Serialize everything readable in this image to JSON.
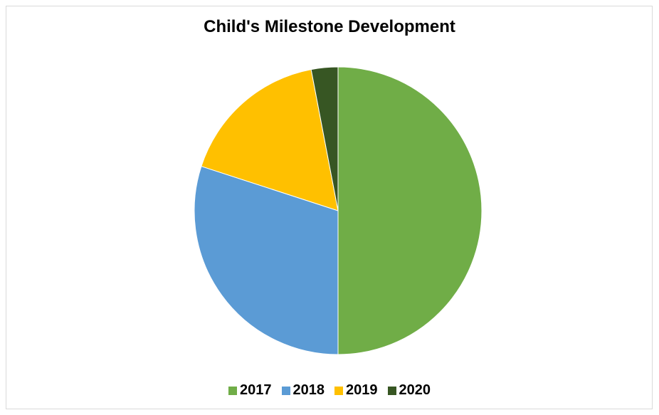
{
  "chart_data": {
    "type": "pie",
    "title": "Child's Milestone Development",
    "categories": [
      "2017",
      "2018",
      "2019",
      "2020"
    ],
    "values": [
      50,
      30,
      17,
      3
    ],
    "colors": [
      "#70AD47",
      "#5B9BD5",
      "#FFC000",
      "#375623"
    ],
    "start_angle_deg": 0,
    "direction": "clockwise",
    "legend_position": "bottom"
  }
}
